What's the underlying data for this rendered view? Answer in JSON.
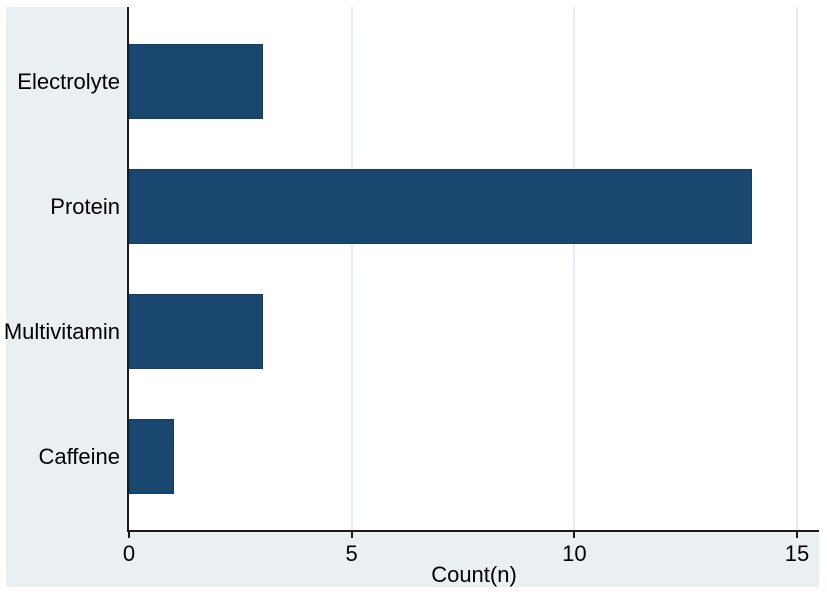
{
  "figure": {
    "canvas_background": "#ffffff",
    "region_background": "#eaf0f2"
  },
  "chart_data": {
    "type": "bar",
    "orientation": "horizontal",
    "categories": [
      "Electrolyte",
      "Protein",
      "Multivitamin",
      "Caffeine"
    ],
    "values": [
      3,
      14,
      3,
      1
    ],
    "title": "",
    "xlabel": "Count(n)",
    "ylabel": "",
    "xlim": [
      0,
      15.5
    ],
    "xticks": [
      0,
      5,
      10,
      15
    ],
    "grid": "vertical gridlines at x ticks (excluding 0)",
    "legend": "none",
    "bar_color": "#1a476f",
    "bar_border_color": "#163d63",
    "gridline_color": "#e2edf0",
    "axis_color": "#1a1a1a",
    "text_color": "#000000"
  }
}
